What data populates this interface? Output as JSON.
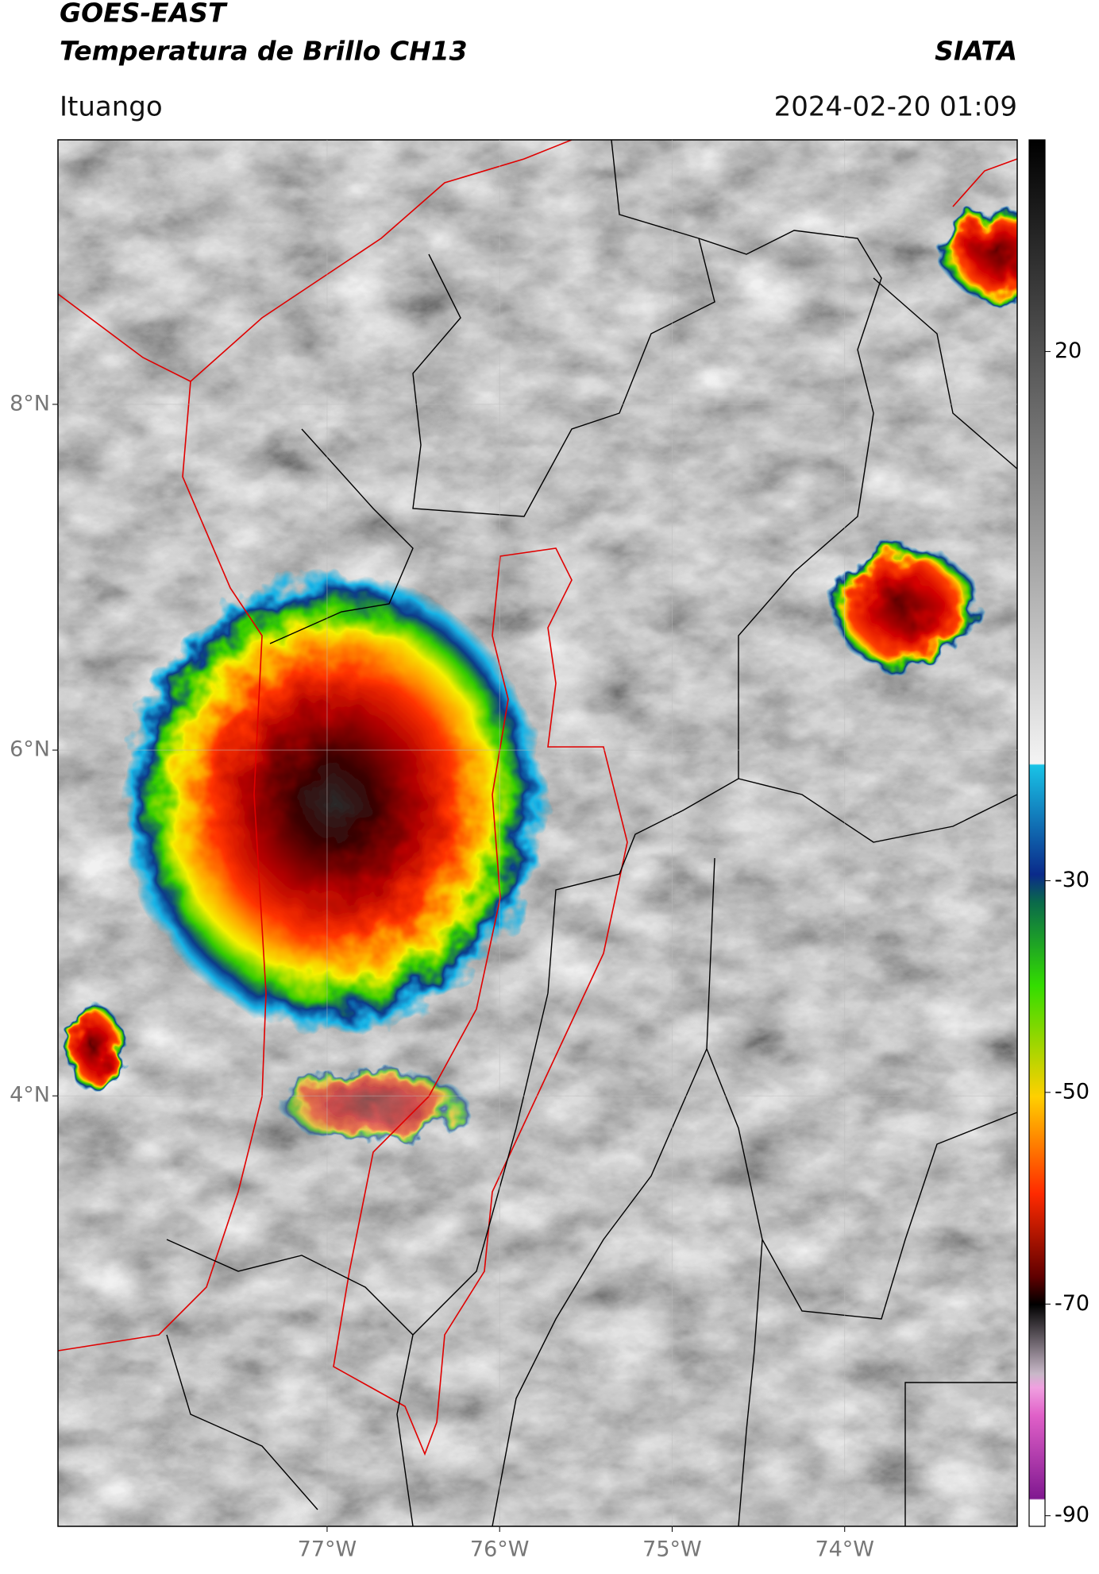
{
  "header": {
    "title": "GOES-EAST",
    "subtitle": "Temperatura de Brillo CH13",
    "source": "SIATA",
    "location": "Ituango",
    "datetime": "2024-02-20 01:09"
  },
  "map": {
    "xlim": [
      -78.56,
      -73.0
    ],
    "ylim": [
      1.51,
      9.53
    ],
    "xticks": [
      {
        "value": -77,
        "label": "77°W"
      },
      {
        "value": -76,
        "label": "76°W"
      },
      {
        "value": -75,
        "label": "75°W"
      },
      {
        "value": -74,
        "label": "74°W"
      }
    ],
    "yticks": [
      {
        "value": 8,
        "label": "8°N"
      },
      {
        "value": 6,
        "label": "6°N"
      },
      {
        "value": 4,
        "label": "4°N"
      }
    ],
    "grid": true
  },
  "colorbar": {
    "lim": [
      -91,
      40
    ],
    "ticks": [
      20,
      -30,
      -50,
      -70,
      -90
    ]
  }
}
